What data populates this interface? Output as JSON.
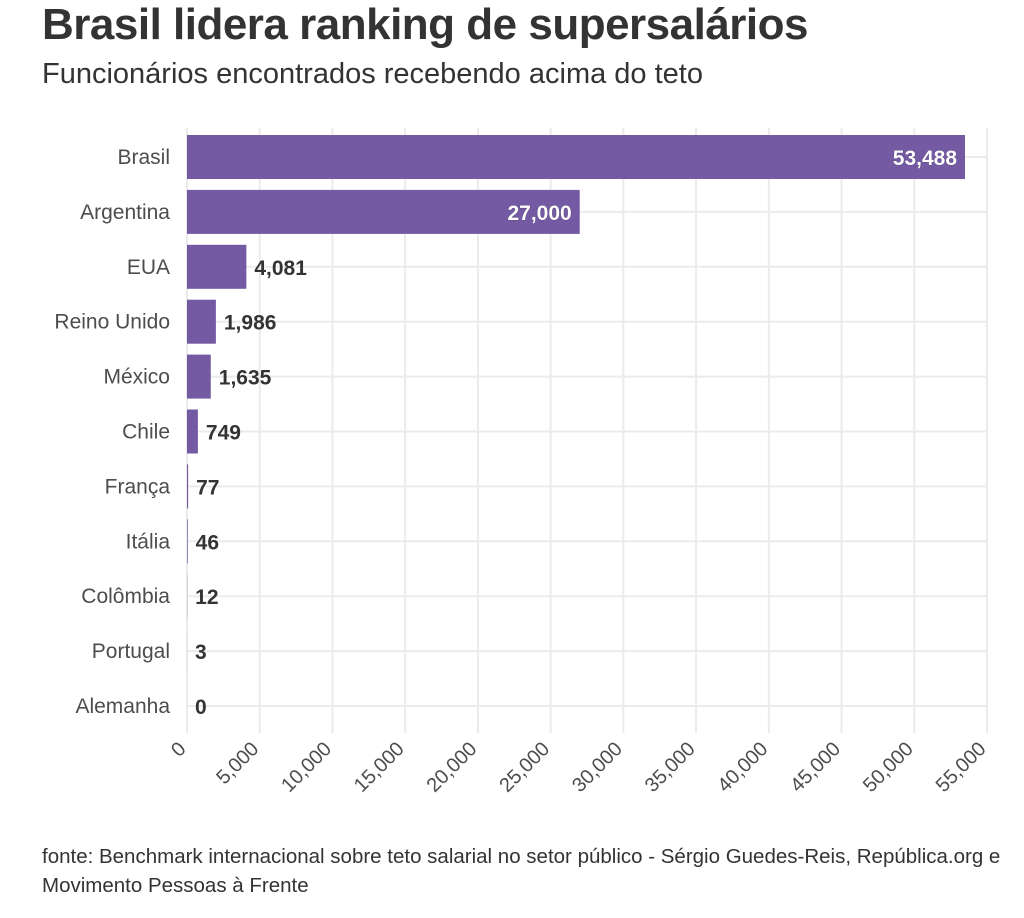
{
  "chart_data": {
    "type": "bar",
    "orientation": "horizontal",
    "title": "Brasil lidera ranking de supersalários",
    "subtitle": "Funcionários encontrados recebendo acima do teto",
    "categories": [
      "Brasil",
      "Argentina",
      "EUA",
      "Reino Unido",
      "México",
      "Chile",
      "França",
      "Itália",
      "Colômbia",
      "Portugal",
      "Alemanha"
    ],
    "values": [
      53488,
      27000,
      4081,
      1986,
      1635,
      749,
      77,
      46,
      12,
      3,
      0
    ],
    "data_labels": [
      "53,488",
      "27,000",
      "4,081",
      "1,986",
      "1,635",
      "749",
      "77",
      "46",
      "12",
      "3",
      "0"
    ],
    "xlim": [
      0,
      55000
    ],
    "x_ticks": [
      0,
      5000,
      10000,
      15000,
      20000,
      25000,
      30000,
      35000,
      40000,
      45000,
      50000,
      55000
    ],
    "x_tick_labels": [
      "0",
      "5,000",
      "10,000",
      "15,000",
      "20,000",
      "25,000",
      "30,000",
      "35,000",
      "40,000",
      "45,000",
      "50,000",
      "55,000"
    ],
    "grid": true,
    "legend": "none",
    "bar_color": "#7459a3",
    "source": "fonte: Benchmark internacional sobre teto salarial no setor público - Sérgio Guedes-Reis, República.org e Movimento Pessoas à Frente"
  }
}
